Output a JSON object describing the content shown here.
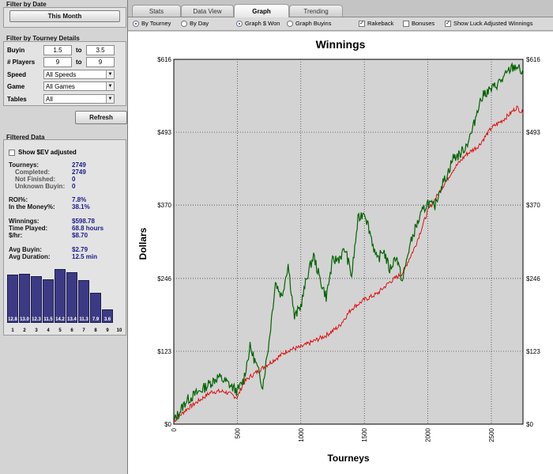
{
  "filter_by_date": {
    "title": "Filter by Date",
    "this_month_label": "This Month"
  },
  "filter_by_tourney": {
    "title": "Filter by Tourney Details",
    "buyin_label": "Buyin",
    "buyin_from": "1.5",
    "buyin_to": "3.5",
    "to_label": "to",
    "players_label": "# Players",
    "players_from": "9",
    "players_to": "9",
    "speed_label": "Speed",
    "speed_value": "All Speeds",
    "game_label": "Game",
    "game_value": "All Games",
    "tables_label": "Tables",
    "tables_value": "All",
    "refresh_label": "Refresh"
  },
  "filtered_data": {
    "title": "Filtered Data",
    "show_sev_label": "Show $EV adjusted",
    "stats": {
      "tourneys_label": "Tourneys:",
      "tourneys": "2749",
      "completed_label": "Completed:",
      "completed": "2749",
      "not_finished_label": "Not Finished:",
      "not_finished": "0",
      "unknown_buyin_label": "Unknown Buyin:",
      "unknown_buyin": "0",
      "roi_label": "ROI%:",
      "roi": "7.8%",
      "itm_label": "In the Money%:",
      "itm": "38.1%",
      "winnings_label": "Winnings:",
      "winnings": "$598.78",
      "time_played_label": "Time Played:",
      "time_played": "68.8 hours",
      "per_hour_label": "$/hr:",
      "per_hour": "$8.70",
      "avg_buyin_label": "Avg Buyin:",
      "avg_buyin": "$2.79",
      "avg_duration_label": "Avg Duration:",
      "avg_duration": "12.5 min"
    },
    "finish_histogram": {
      "categories": [
        "1",
        "2",
        "3",
        "4",
        "5",
        "6",
        "7",
        "8",
        "9",
        "10"
      ],
      "values": [
        12.8,
        13.0,
        12.3,
        11.5,
        14.2,
        13.4,
        11.3,
        7.9,
        3.6,
        0
      ],
      "labels": [
        "12.8",
        "13.0",
        "12.3",
        "11.5",
        "14.2",
        "13.4",
        "11.3",
        "7.9",
        "3.6",
        ""
      ]
    }
  },
  "tabs": [
    {
      "label": "Stats",
      "active": false
    },
    {
      "label": "Data View",
      "active": false
    },
    {
      "label": "Graph",
      "active": true
    },
    {
      "label": "Trending",
      "active": false
    }
  ],
  "options": {
    "by_tourney": "By Tourney",
    "by_day": "By Day",
    "graph_won": "Graph $ Won",
    "graph_buyins": "Graph Buyins",
    "rakeback": "Rakeback",
    "bonuses": "Bonuses",
    "luck_adjusted": "Show Luck Adjusted Winnings"
  },
  "colors": {
    "winnings_line": "#006400",
    "luck_adjusted_line": "#e00000",
    "plot_background": "#d3d3d3",
    "histogram_bar": "#3d3a85"
  },
  "chart_data": {
    "type": "line",
    "title": "Winnings",
    "xlabel": "Tourneys",
    "ylabel": "Dollars",
    "xlim": [
      0,
      2749
    ],
    "ylim": [
      0,
      616
    ],
    "x_ticks": [
      0,
      500,
      1000,
      1500,
      2000,
      2500
    ],
    "y_ticks": [
      0,
      123,
      246,
      370,
      493,
      616
    ],
    "y_tick_labels": [
      "$0",
      "$123",
      "$246",
      "$370",
      "$493",
      "$616"
    ],
    "grid": true,
    "series": [
      {
        "x": [
          0,
          100,
          200,
          280,
          350,
          420,
          500,
          550,
          600,
          650,
          700,
          750,
          800,
          850,
          900,
          950,
          1000,
          1050,
          1100,
          1150,
          1200,
          1250,
          1300,
          1350,
          1400,
          1450,
          1500,
          1550,
          1600,
          1650,
          1700,
          1750,
          1800,
          1850,
          1900,
          1950,
          2000,
          2050,
          2100,
          2150,
          2200,
          2250,
          2300,
          2350,
          2400,
          2450,
          2500,
          2550,
          2600,
          2650,
          2700,
          2749
        ],
        "y": [
          5,
          40,
          55,
          68,
          80,
          70,
          55,
          75,
          130,
          100,
          65,
          140,
          240,
          215,
          270,
          180,
          200,
          250,
          285,
          245,
          215,
          275,
          280,
          295,
          250,
          345,
          360,
          320,
          275,
          295,
          260,
          285,
          240,
          295,
          330,
          355,
          375,
          365,
          400,
          420,
          450,
          455,
          470,
          495,
          540,
          560,
          565,
          575,
          585,
          600,
          605,
          590
        ]
      },
      {
        "x": [
          0,
          100,
          200,
          300,
          400,
          500,
          550,
          600,
          700,
          800,
          900,
          1000,
          1100,
          1200,
          1300,
          1400,
          1500,
          1600,
          1700,
          1800,
          1900,
          2000,
          2100,
          2200,
          2300,
          2400,
          2500,
          2600,
          2700,
          2749
        ],
        "y": [
          5,
          25,
          40,
          55,
          55,
          45,
          70,
          80,
          95,
          110,
          125,
          130,
          140,
          150,
          165,
          195,
          210,
          220,
          240,
          255,
          300,
          360,
          395,
          430,
          455,
          470,
          500,
          515,
          535,
          525
        ]
      }
    ]
  }
}
